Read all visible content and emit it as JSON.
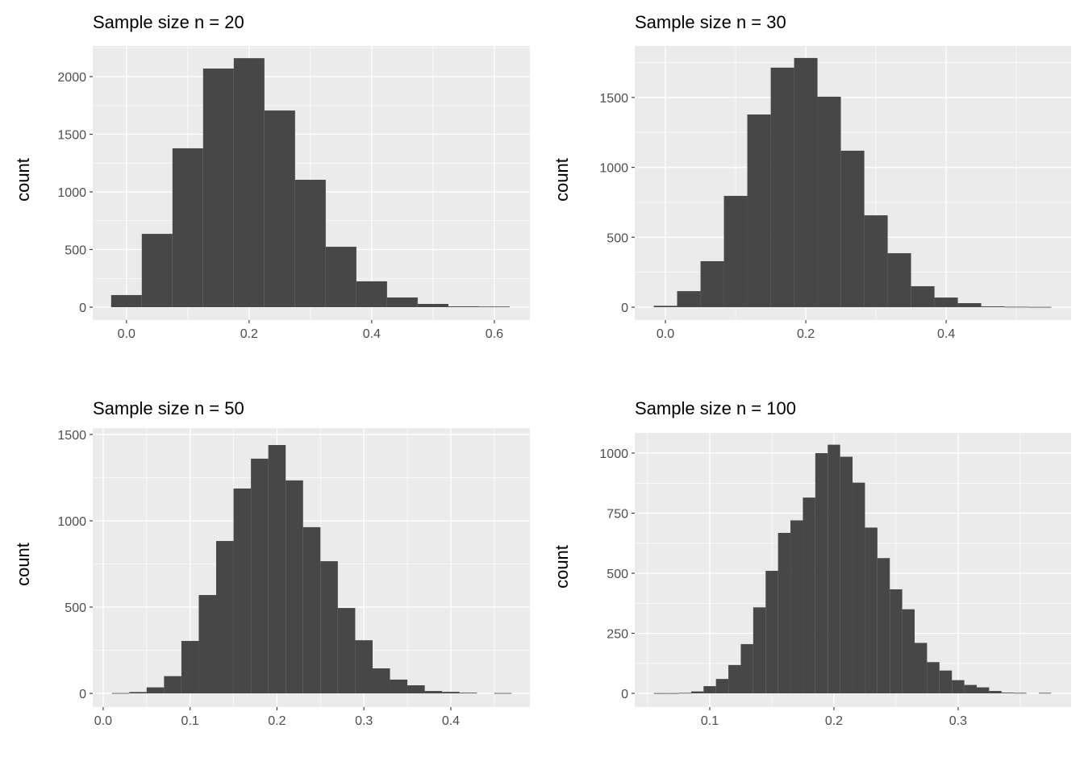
{
  "chart_data": [
    {
      "type": "bar",
      "title": "Sample size n = 20",
      "xlabel": "",
      "ylabel": "count",
      "bin_width": 0.05,
      "bin_centers": [
        0.0,
        0.05,
        0.1,
        0.15,
        0.2,
        0.25,
        0.3,
        0.35,
        0.4,
        0.45,
        0.5,
        0.55,
        0.6
      ],
      "values": [
        105,
        636,
        1378,
        2070,
        2160,
        1706,
        1105,
        524,
        224,
        84,
        28,
        7,
        5
      ],
      "xlim": [
        -0.055,
        0.658
      ],
      "ylim": [
        -112,
        2266
      ],
      "xticks": [
        0.0,
        0.2,
        0.4,
        0.6
      ],
      "xtick_labels": [
        "0.0",
        "0.2",
        "0.4",
        "0.6"
      ],
      "yticks": [
        0,
        500,
        1000,
        1500,
        2000
      ],
      "ytick_labels": [
        "0",
        "500",
        "1000",
        "1500",
        "2000"
      ],
      "grid": true
    },
    {
      "type": "bar",
      "title": "Sample size n = 30",
      "xlabel": "",
      "ylabel": "count",
      "bin_width": 0.0333,
      "bin_centers": [
        0.0,
        0.0333,
        0.0667,
        0.1,
        0.1333,
        0.1667,
        0.2,
        0.2333,
        0.2667,
        0.3,
        0.3333,
        0.3667,
        0.4,
        0.4333,
        0.4667,
        0.5,
        0.5333
      ],
      "values": [
        10,
        115,
        329,
        796,
        1378,
        1713,
        1782,
        1505,
        1119,
        657,
        386,
        150,
        69,
        29,
        6,
        3,
        2
      ],
      "xlim": [
        -0.0437,
        0.578
      ],
      "ylim": [
        -92,
        1868
      ],
      "xticks": [
        0.0,
        0.2,
        0.4
      ],
      "xtick_labels": [
        "0.0",
        "0.2",
        "0.4"
      ],
      "yticks": [
        0,
        500,
        1000,
        1500
      ],
      "ytick_labels": [
        "0",
        "500",
        "1000",
        "1500"
      ],
      "grid": true
    },
    {
      "type": "bar",
      "title": "Sample size n = 50",
      "xlabel": "",
      "ylabel": "count",
      "bin_width": 0.02,
      "bin_centers": [
        0.02,
        0.04,
        0.06,
        0.08,
        0.1,
        0.12,
        0.14,
        0.16,
        0.18,
        0.2,
        0.22,
        0.24,
        0.26,
        0.28,
        0.3,
        0.32,
        0.34,
        0.36,
        0.38,
        0.4,
        0.42,
        0.44,
        0.46
      ],
      "values": [
        2,
        8,
        35,
        100,
        304,
        570,
        883,
        1187,
        1360,
        1439,
        1234,
        963,
        766,
        495,
        308,
        145,
        80,
        47,
        14,
        9,
        4,
        0,
        2
      ],
      "xlim": [
        -0.012,
        0.491
      ],
      "ylim": [
        -79,
        1537
      ],
      "xticks": [
        0.0,
        0.1,
        0.2,
        0.3,
        0.4
      ],
      "xtick_labels": [
        "0.0",
        "0.1",
        "0.2",
        "0.3",
        "0.4"
      ],
      "yticks": [
        0,
        500,
        1000,
        1500
      ],
      "ytick_labels": [
        "0",
        "500",
        "1000",
        "1500"
      ],
      "grid": true
    },
    {
      "type": "bar",
      "title": "Sample size n = 100",
      "xlabel": "",
      "ylabel": "count",
      "bin_width": 0.01,
      "bin_centers": [
        0.06,
        0.07,
        0.08,
        0.09,
        0.1,
        0.11,
        0.12,
        0.13,
        0.14,
        0.15,
        0.16,
        0.17,
        0.18,
        0.19,
        0.2,
        0.21,
        0.22,
        0.23,
        0.24,
        0.25,
        0.26,
        0.27,
        0.28,
        0.29,
        0.3,
        0.31,
        0.32,
        0.33,
        0.34,
        0.35,
        0.36,
        0.37
      ],
      "values": [
        1,
        1,
        2,
        8,
        30,
        60,
        118,
        205,
        358,
        510,
        668,
        720,
        815,
        1000,
        1035,
        985,
        877,
        690,
        563,
        433,
        350,
        210,
        130,
        95,
        55,
        35,
        25,
        10,
        3,
        2,
        0,
        2
      ],
      "xlim": [
        0.0396,
        0.391
      ],
      "ylim": [
        -57,
        1084
      ],
      "xticks": [
        0.1,
        0.2,
        0.3
      ],
      "xtick_labels": [
        "0.1",
        "0.2",
        "0.3"
      ],
      "yticks": [
        0,
        250,
        500,
        750,
        1000
      ],
      "ytick_labels": [
        "0",
        "250",
        "500",
        "750",
        "1000"
      ],
      "grid": true
    }
  ],
  "colors": {
    "panel_bg": "#ebebeb",
    "bar": "#474747",
    "grid_major": "#ffffff",
    "text": "#4d4d4d",
    "title": "#000000"
  }
}
